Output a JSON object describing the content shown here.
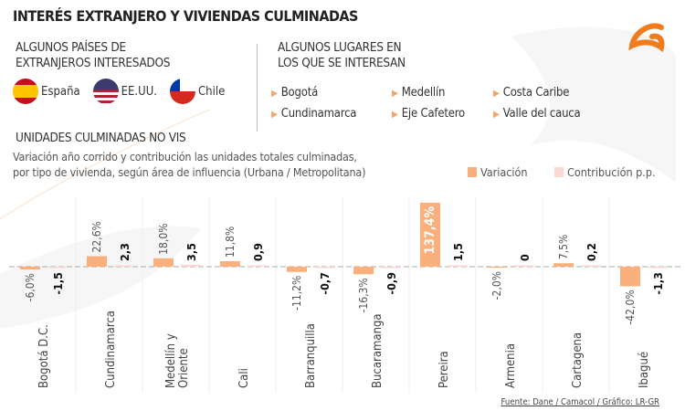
{
  "title": "INTERÉS EXTRANJERO Y VIVIENDAS CULMINADAS",
  "countries": {
    "heading": [
      "ALGUNOS PAÍSES DE",
      "EXTRANJEROS INTERESADOS"
    ],
    "items": [
      {
        "name": "España",
        "icon": "spain-flag-icon"
      },
      {
        "name": "EE.UU.",
        "icon": "usa-flag-icon"
      },
      {
        "name": "Chile",
        "icon": "chile-flag-icon"
      }
    ]
  },
  "places": {
    "heading": [
      "ALGUNOS LUGARES EN",
      "LOS QUE SE INTERESAN"
    ],
    "items": [
      "Bogotá",
      "Medellín",
      "Costa Caribe",
      "Cundinamarca",
      "Eje Cafetero",
      "Valle del cauca"
    ]
  },
  "source": "Fuente: Dane / Camacol / Gráfico: LR-GR",
  "colors": {
    "variation": "#f9b07c",
    "contribution": "#fbd9d0",
    "accent": "#f07c1e"
  },
  "chart_data": {
    "type": "bar",
    "title": "UNIDADES CULMINADAS NO VIS",
    "subtitle": [
      "Variación año corrido y contribución las unidades totales culminadas,",
      "por tipo de vivienda, según área de influencia (Urbana / Metropolitana)"
    ],
    "legend_position": "top-right",
    "categories": [
      "Bogotá D.C.",
      "Cundinamarca",
      "Medellín y Oriente",
      "Cali",
      "Barranquilla",
      "Bucaramanga",
      "Pereira",
      "Armenia",
      "Cartagena",
      "Ibagué"
    ],
    "series": [
      {
        "name": "Variación",
        "values": [
          -6.0,
          22.6,
          18.0,
          11.8,
          -11.2,
          -16.3,
          137.4,
          -2.0,
          7.5,
          -42.0
        ],
        "labels": [
          "-6,0%",
          "22,6%",
          "18,0%",
          "11,8%",
          "-11,2%",
          "-16,3%",
          "137,4%",
          "-2,0%",
          "7,5%",
          "-42,0%"
        ]
      },
      {
        "name": "Contribución p.p.",
        "values": [
          -1.5,
          2.3,
          3.5,
          0.9,
          -0.7,
          -0.9,
          1.5,
          0,
          0.2,
          -1.3
        ],
        "labels": [
          "-1,5",
          "2,3",
          "3,5",
          "0,9",
          "-0,7",
          "-0,9",
          "1,5",
          "0",
          "0,2",
          "-1,3"
        ]
      }
    ],
    "grid": false
  }
}
